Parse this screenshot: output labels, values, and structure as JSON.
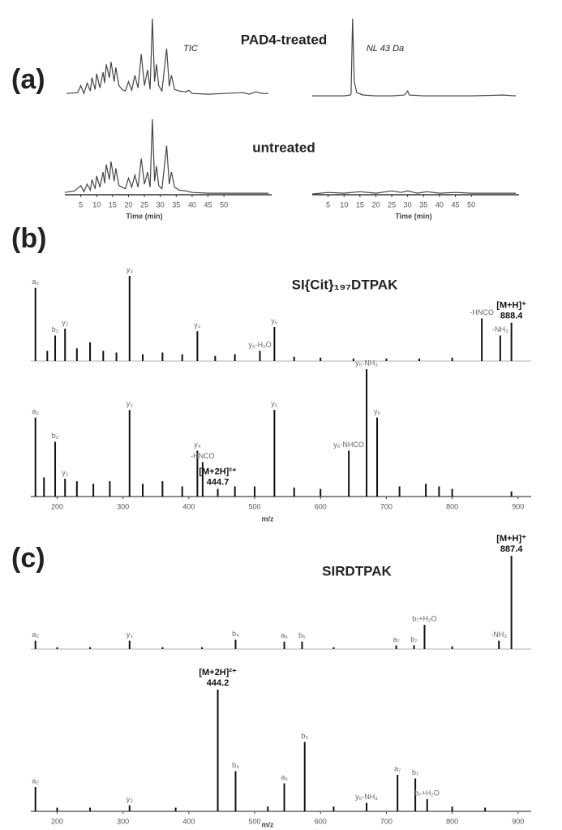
{
  "panels": [
    {
      "label": "(a)"
    },
    {
      "label": "(b)"
    },
    {
      "label": "(c)"
    }
  ],
  "chart_data": [
    {
      "type": "line",
      "title": "PAD4-treated",
      "annotation": "TIC",
      "color": "#444",
      "x": [
        0.5,
        4,
        5,
        6,
        7,
        8,
        8.5,
        9.5,
        10,
        11,
        12,
        12.5,
        13,
        14,
        14.5,
        15.5,
        16,
        17,
        18,
        19,
        20,
        21,
        22,
        23,
        24,
        25,
        26,
        26.8,
        27.5,
        28.2,
        28.8,
        29.5,
        30.5,
        32,
        32.8,
        33.5,
        34.5,
        36,
        38,
        39,
        40,
        45,
        50,
        56,
        58,
        60,
        62,
        64
      ],
      "values": [
        5,
        6,
        15,
        5,
        18,
        8,
        25,
        10,
        30,
        12,
        32,
        18,
        42,
        25,
        45,
        20,
        38,
        15,
        10,
        8,
        20,
        9,
        28,
        12,
        55,
        15,
        35,
        10,
        100,
        20,
        42,
        15,
        8,
        62,
        14,
        28,
        10,
        8,
        7,
        9,
        5,
        4,
        5,
        6,
        4,
        7,
        5,
        5
      ],
      "xlim": [
        0,
        65
      ],
      "ylim": [
        0,
        100
      ]
    },
    {
      "type": "line",
      "annotation": "NL 43 Da",
      "color": "#444",
      "x": [
        0,
        10,
        12,
        12.2,
        12.7,
        13.2,
        14,
        16,
        20,
        25,
        29,
        30,
        30.5,
        35,
        40,
        50,
        60,
        64
      ],
      "values": [
        2,
        2,
        3,
        5,
        100,
        20,
        6,
        3,
        2,
        2,
        3,
        8,
        3,
        2,
        2,
        2,
        3,
        2
      ],
      "xlim": [
        0,
        65
      ],
      "ylim": [
        0,
        100
      ]
    },
    {
      "type": "line",
      "title": "untreated",
      "color": "#444",
      "xlabel": "Time (min)",
      "x": [
        0,
        3,
        5,
        6,
        7,
        8,
        8.5,
        9.5,
        10,
        11,
        12,
        12.5,
        13,
        14,
        14.5,
        15.5,
        16,
        17,
        18,
        19,
        20,
        21,
        22,
        23,
        24,
        25,
        26,
        26.8,
        27.5,
        28.2,
        28.8,
        29.5,
        30.5,
        32,
        32.8,
        33.5,
        34.5,
        36,
        38,
        40,
        45,
        50,
        55,
        60,
        64
      ],
      "values": [
        3,
        5,
        12,
        4,
        14,
        6,
        20,
        8,
        25,
        10,
        30,
        15,
        40,
        20,
        44,
        18,
        35,
        12,
        10,
        8,
        22,
        10,
        26,
        10,
        48,
        14,
        30,
        10,
        100,
        18,
        38,
        12,
        8,
        65,
        14,
        30,
        10,
        6,
        5,
        3,
        2,
        2,
        2,
        2,
        2
      ],
      "xlim": [
        0,
        65
      ],
      "ylim": [
        0,
        100
      ],
      "xticks": [
        5,
        10,
        15,
        20,
        25,
        30,
        35,
        40,
        45,
        50
      ]
    },
    {
      "type": "line",
      "color": "#444",
      "xlabel": "Time (min)",
      "x": [
        0,
        5,
        10,
        15,
        20,
        25,
        28,
        30,
        33,
        36,
        40,
        45,
        50,
        55,
        60,
        64
      ],
      "values": [
        1,
        3,
        2,
        4,
        2,
        5,
        3,
        5,
        2,
        4,
        2,
        3,
        2,
        2,
        2,
        2
      ],
      "xlim": [
        0,
        65
      ],
      "ylim": [
        0,
        100
      ],
      "xticks": [
        5,
        10,
        15,
        20,
        25,
        30,
        35,
        40,
        45,
        50
      ]
    },
    {
      "type": "spectrum",
      "title": "SI{Cit}₁₉₇DTPAK",
      "color": "#111",
      "x": [
        167,
        185,
        197,
        212,
        230,
        250,
        270,
        290,
        310,
        330,
        360,
        390,
        413,
        440,
        470,
        508,
        530,
        560,
        600,
        650,
        700,
        750,
        800,
        845,
        873,
        890
      ],
      "values": [
        86,
        12,
        30,
        38,
        15,
        22,
        12,
        10,
        100,
        8,
        10,
        8,
        35,
        6,
        8,
        12,
        40,
        5,
        4,
        3,
        3,
        3,
        4,
        50,
        30,
        45
      ],
      "labels": [
        "a₂",
        null,
        "b₂",
        "y₂",
        null,
        null,
        null,
        null,
        "y₃",
        null,
        null,
        null,
        "y₄",
        null,
        null,
        "y₅-H₂O",
        "y₆",
        null,
        null,
        null,
        null,
        null,
        null,
        "-HNCO",
        "-NH₃",
        [
          "[M+H]⁺",
          "888.4"
        ]
      ],
      "xlim": [
        160,
        920
      ],
      "ylim": [
        0,
        100
      ]
    },
    {
      "type": "spectrum",
      "color": "#111",
      "xlabel": "m/z",
      "x": [
        167,
        180,
        197,
        212,
        230,
        255,
        280,
        310,
        330,
        360,
        390,
        413,
        421,
        444,
        470,
        500,
        530,
        560,
        600,
        643,
        670,
        686,
        720,
        760,
        780,
        800,
        890
      ],
      "values": [
        62,
        15,
        43,
        14,
        12,
        10,
        12,
        68,
        10,
        12,
        8,
        36,
        27,
        6,
        8,
        8,
        68,
        7,
        6,
        36,
        100,
        62,
        8,
        10,
        8,
        6,
        4
      ],
      "labels": [
        "a₂",
        null,
        "b₂",
        "y₂",
        null,
        null,
        null,
        "y₃",
        null,
        null,
        null,
        "y₄",
        "-HNCO",
        [
          "[M+2H]²⁺",
          "444.7"
        ],
        null,
        null,
        "y₅",
        null,
        null,
        "y₆-NHCO",
        "y₆-NH₃",
        "y₆",
        null,
        null,
        null,
        null,
        null
      ],
      "xlim": [
        160,
        920
      ],
      "ylim": [
        0,
        100
      ],
      "xticks": [
        200,
        300,
        400,
        500,
        600,
        700,
        800,
        900
      ]
    },
    {
      "type": "spectrum",
      "title": "SIRDTPAK",
      "color": "#111",
      "x": [
        167,
        200,
        250,
        310,
        360,
        420,
        471,
        545,
        572,
        620,
        715,
        742,
        758,
        800,
        871,
        890
      ],
      "values": [
        9,
        2,
        2,
        9,
        2,
        2,
        10,
        8,
        8,
        2,
        4,
        4,
        26,
        3,
        9,
        100
      ],
      "labels": [
        "a₂",
        null,
        null,
        "y₃",
        null,
        null,
        "b₄",
        "a₅",
        "b₅",
        null,
        "a₇",
        "b₇",
        "b₇+H₂O",
        null,
        "-NH₃",
        [
          "[M+H]⁺",
          "887.4"
        ]
      ],
      "xlim": [
        160,
        920
      ],
      "ylim": [
        0,
        100
      ]
    },
    {
      "type": "spectrum",
      "color": "#111",
      "xlabel": "m/z",
      "x": [
        167,
        200,
        250,
        310,
        380,
        444,
        471,
        520,
        545,
        576,
        620,
        670,
        717,
        744,
        762,
        800,
        850
      ],
      "values": [
        20,
        3,
        3,
        5,
        3,
        100,
        33,
        4,
        23,
        57,
        4,
        7,
        30,
        27,
        10,
        4,
        3
      ],
      "labels": [
        "a₂",
        null,
        null,
        "y₃",
        null,
        [
          "[M+2H]²⁺",
          "444.2"
        ],
        "b₄",
        null,
        "a₅",
        "b₅",
        null,
        "y₆-NH₃",
        "a₇",
        "b₇",
        "b₇+H₂O",
        null,
        null
      ],
      "xlim": [
        160,
        920
      ],
      "ylim": [
        0,
        100
      ],
      "xticks": [
        200,
        300,
        400,
        500,
        600,
        700,
        800,
        900
      ]
    }
  ]
}
